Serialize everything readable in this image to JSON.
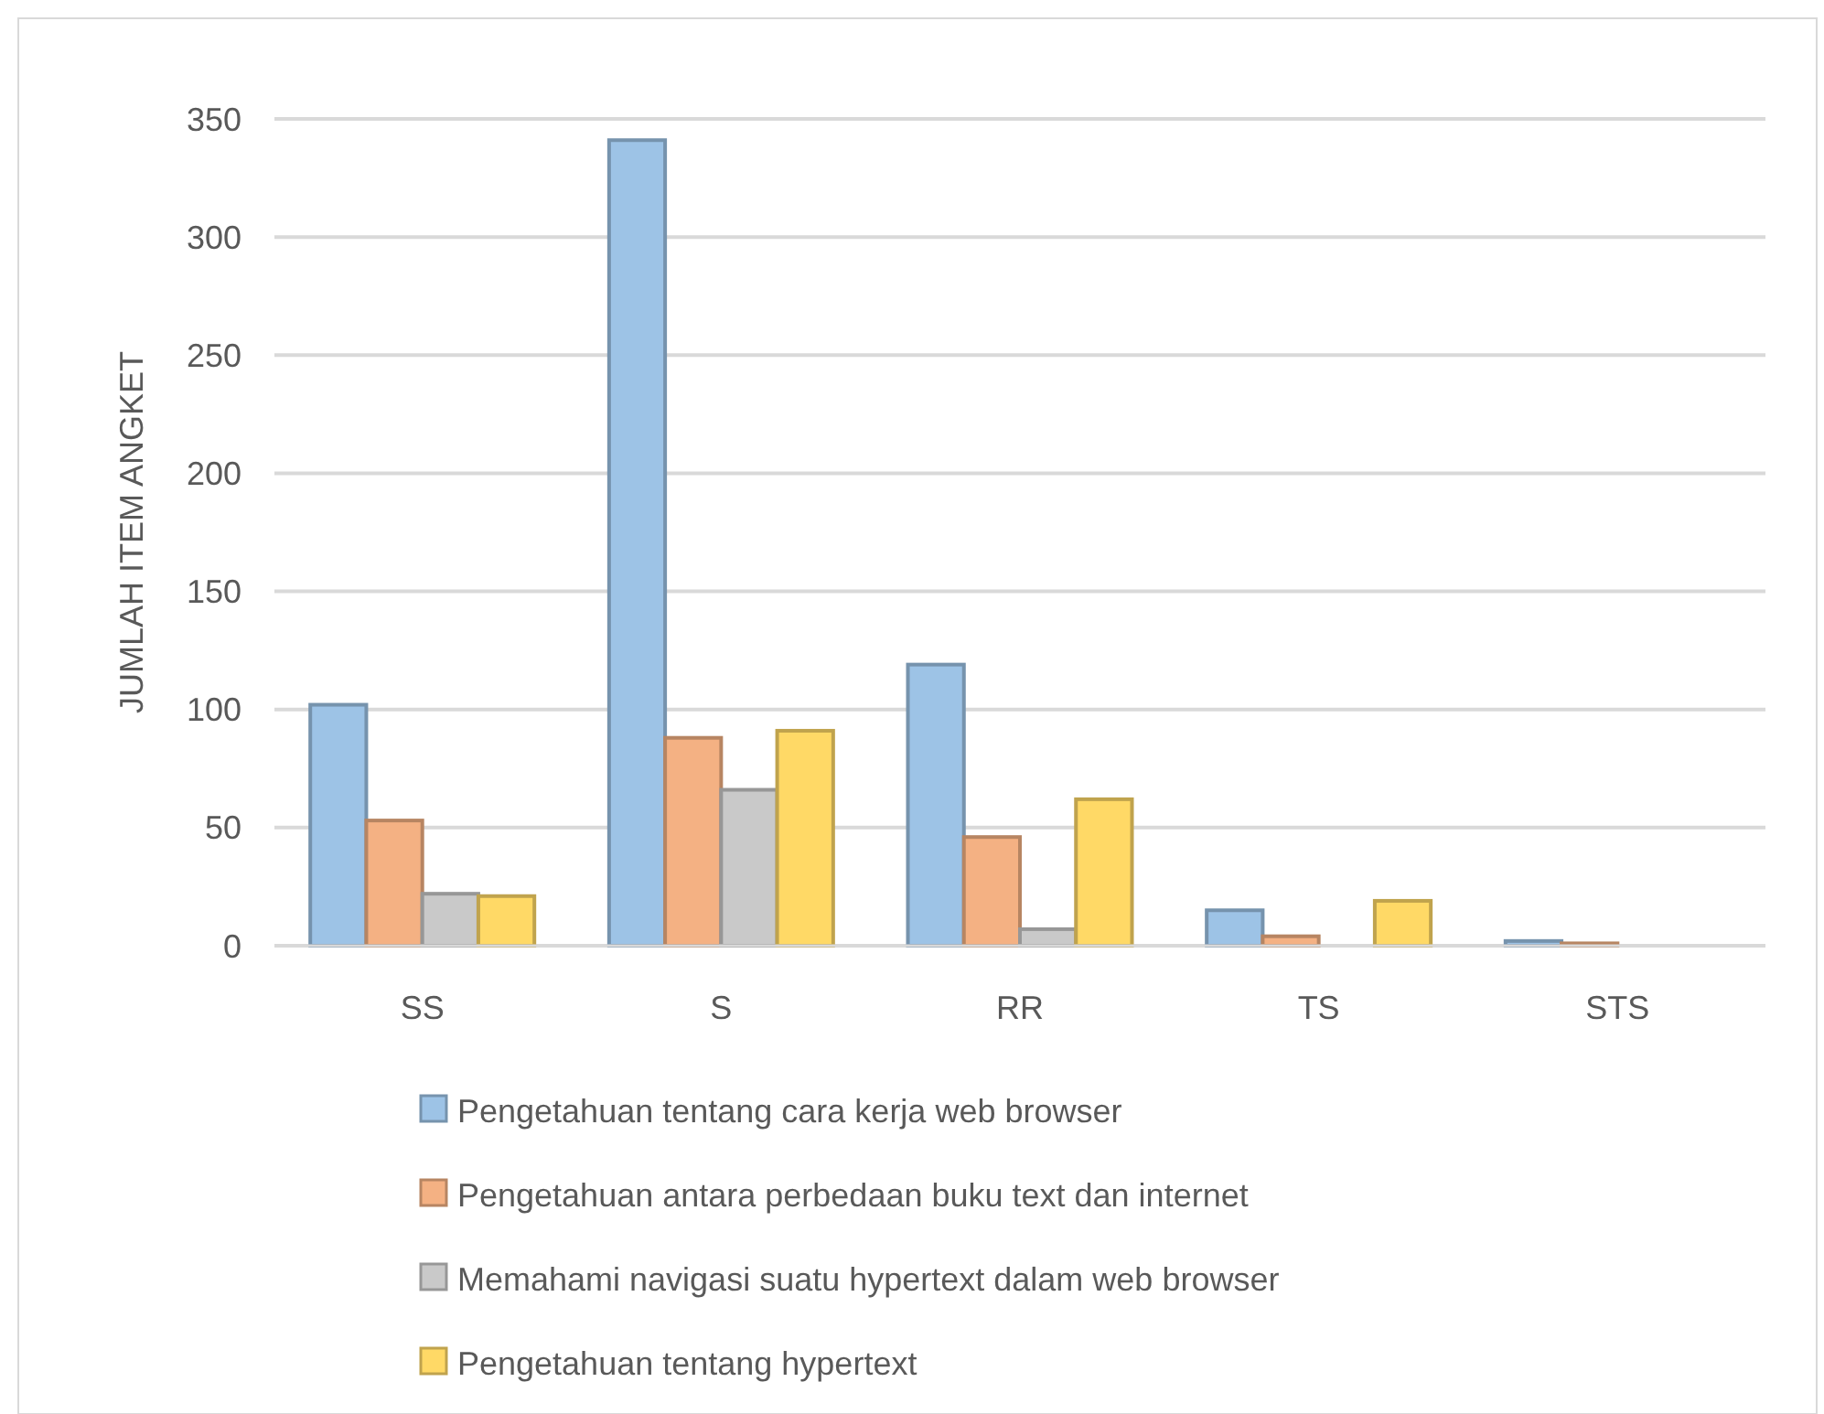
{
  "chart_data": {
    "type": "bar",
    "ylabel": "JUMLAH ITEM ANGKET",
    "categories": [
      "SS",
      "S",
      "RR",
      "TS",
      "STS"
    ],
    "series": [
      {
        "name": "Pengetahuan tentang cara kerja web browser",
        "color": "#9dc3e6",
        "values": [
          102,
          341,
          119,
          15,
          2
        ]
      },
      {
        "name": "Pengetahuan antara perbedaan buku text dan internet",
        "color": "#f4b183",
        "values": [
          53,
          88,
          46,
          4,
          1
        ]
      },
      {
        "name": "Memahami navigasi suatu hypertext dalam web browser",
        "color": "#c9c9c9",
        "values": [
          22,
          66,
          7,
          0,
          0
        ]
      },
      {
        "name": "Pengetahuan tentang hypertext",
        "color": "#ffd966",
        "values": [
          21,
          91,
          62,
          19,
          0
        ]
      }
    ],
    "ylim": [
      0,
      350
    ],
    "yticks": [
      0,
      50,
      100,
      150,
      200,
      250,
      300,
      350
    ],
    "grid": "y",
    "legend": "bottom"
  }
}
